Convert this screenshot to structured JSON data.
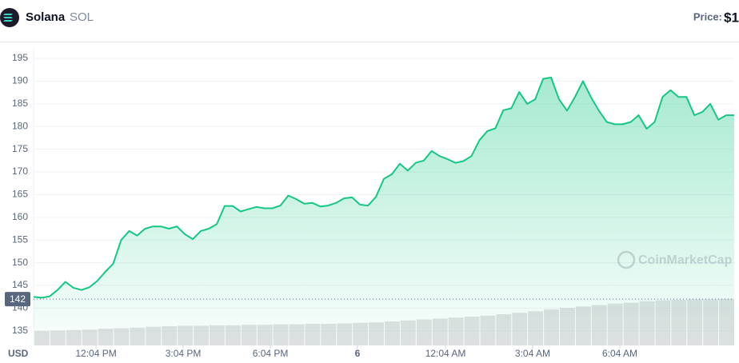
{
  "header": {
    "name": "Solana",
    "symbol": "SOL",
    "price_label": "Price:",
    "price": "$1"
  },
  "chart_data": {
    "type": "line",
    "currency": "USD",
    "watermark": "CoinMarketCap",
    "color": "#16c784",
    "grid": true,
    "values": [
      142.5,
      142.3,
      142.6,
      144,
      145.8,
      144.5,
      144,
      144.6,
      146,
      148,
      149.8,
      155,
      157,
      156,
      157.5,
      158,
      158,
      157.5,
      158,
      156.3,
      155.2,
      157,
      157.5,
      158.5,
      162.5,
      162.5,
      161.3,
      161.8,
      162.3,
      162,
      162,
      162.6,
      164.8,
      164,
      163,
      163.2,
      162.4,
      162.6,
      163.2,
      164.2,
      164.4,
      162.8,
      162.6,
      164.5,
      168.5,
      169.5,
      171.8,
      170.3,
      172,
      172.5,
      174.6,
      173.5,
      172.8,
      172,
      172.4,
      173.5,
      177,
      179,
      179.6,
      183.6,
      184,
      187.6,
      185,
      186,
      190.5,
      190.8,
      186,
      183.5,
      186.5,
      190,
      186.5,
      183.5,
      181,
      180.5,
      180.5,
      181,
      182.5,
      179.5,
      181,
      186.5,
      188,
      186.5,
      186.5,
      182.5,
      183.2,
      185,
      181.5,
      182.5,
      182.5
    ],
    "xlim": [
      0,
      88
    ],
    "xticks": [
      {
        "value": 7.84,
        "label": "12:04 PM"
      },
      {
        "value": 18.79,
        "label": "3:04 PM"
      },
      {
        "value": 29.74,
        "label": "6:04 PM"
      },
      {
        "value": 40.68,
        "label": "6"
      },
      {
        "value": 51.74,
        "label": "12:04 AM"
      },
      {
        "value": 62.68,
        "label": "3:04 AM"
      },
      {
        "value": 73.63,
        "label": "6:04 AM"
      }
    ],
    "ylim": [
      131.8,
      197.3
    ],
    "yticks": [
      135,
      140,
      145,
      150,
      155,
      160,
      165,
      170,
      175,
      180,
      185,
      190,
      195
    ],
    "reference_line": 142,
    "volume": {
      "color": "#c8c9cc",
      "ylim": [
        0,
        100
      ],
      "values": [
        30,
        31,
        32,
        33,
        35,
        36,
        37,
        39,
        40,
        41,
        41,
        42,
        42,
        43,
        43,
        44,
        44,
        45,
        45,
        46,
        47,
        48,
        50,
        52,
        54,
        56,
        58,
        60,
        62,
        65,
        68,
        71,
        75,
        78,
        81,
        84,
        87,
        89,
        92,
        94,
        95,
        96,
        96,
        97
      ]
    }
  }
}
